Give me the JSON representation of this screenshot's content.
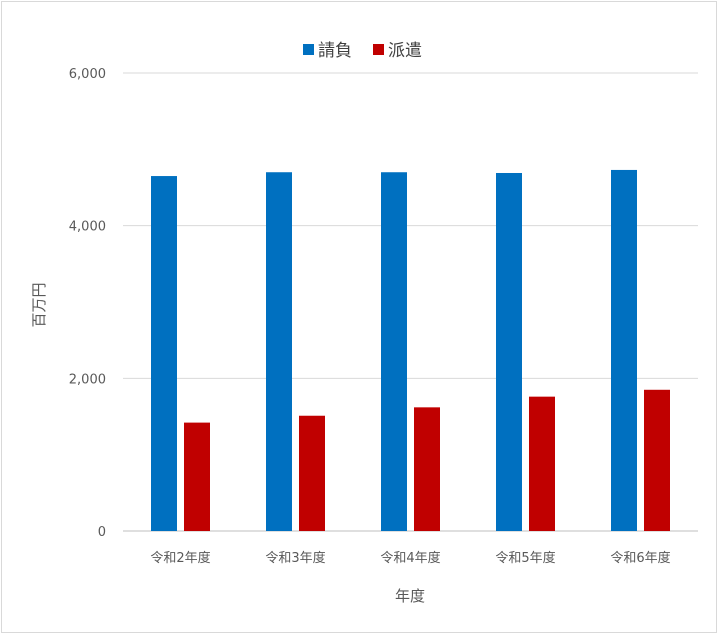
{
  "chart_data": {
    "type": "bar",
    "title": "",
    "xlabel": "年度",
    "ylabel": "百万円",
    "categories": [
      "令和2年度",
      "令和3年度",
      "令和4年度",
      "令和5年度",
      "令和6年度"
    ],
    "series": [
      {
        "name": "請負",
        "color": "#0070C0",
        "values": [
          4650,
          4700,
          4700,
          4690,
          4730
        ]
      },
      {
        "name": "派遣",
        "color": "#C00000",
        "values": [
          1420,
          1510,
          1620,
          1760,
          1850
        ]
      }
    ],
    "ylim": [
      0,
      6000
    ],
    "yticks": [
      0,
      2000,
      4000,
      6000
    ],
    "ytick_labels": [
      "0",
      "2,000",
      "4,000",
      "6,000"
    ],
    "grid": true,
    "legend_position": "top"
  }
}
